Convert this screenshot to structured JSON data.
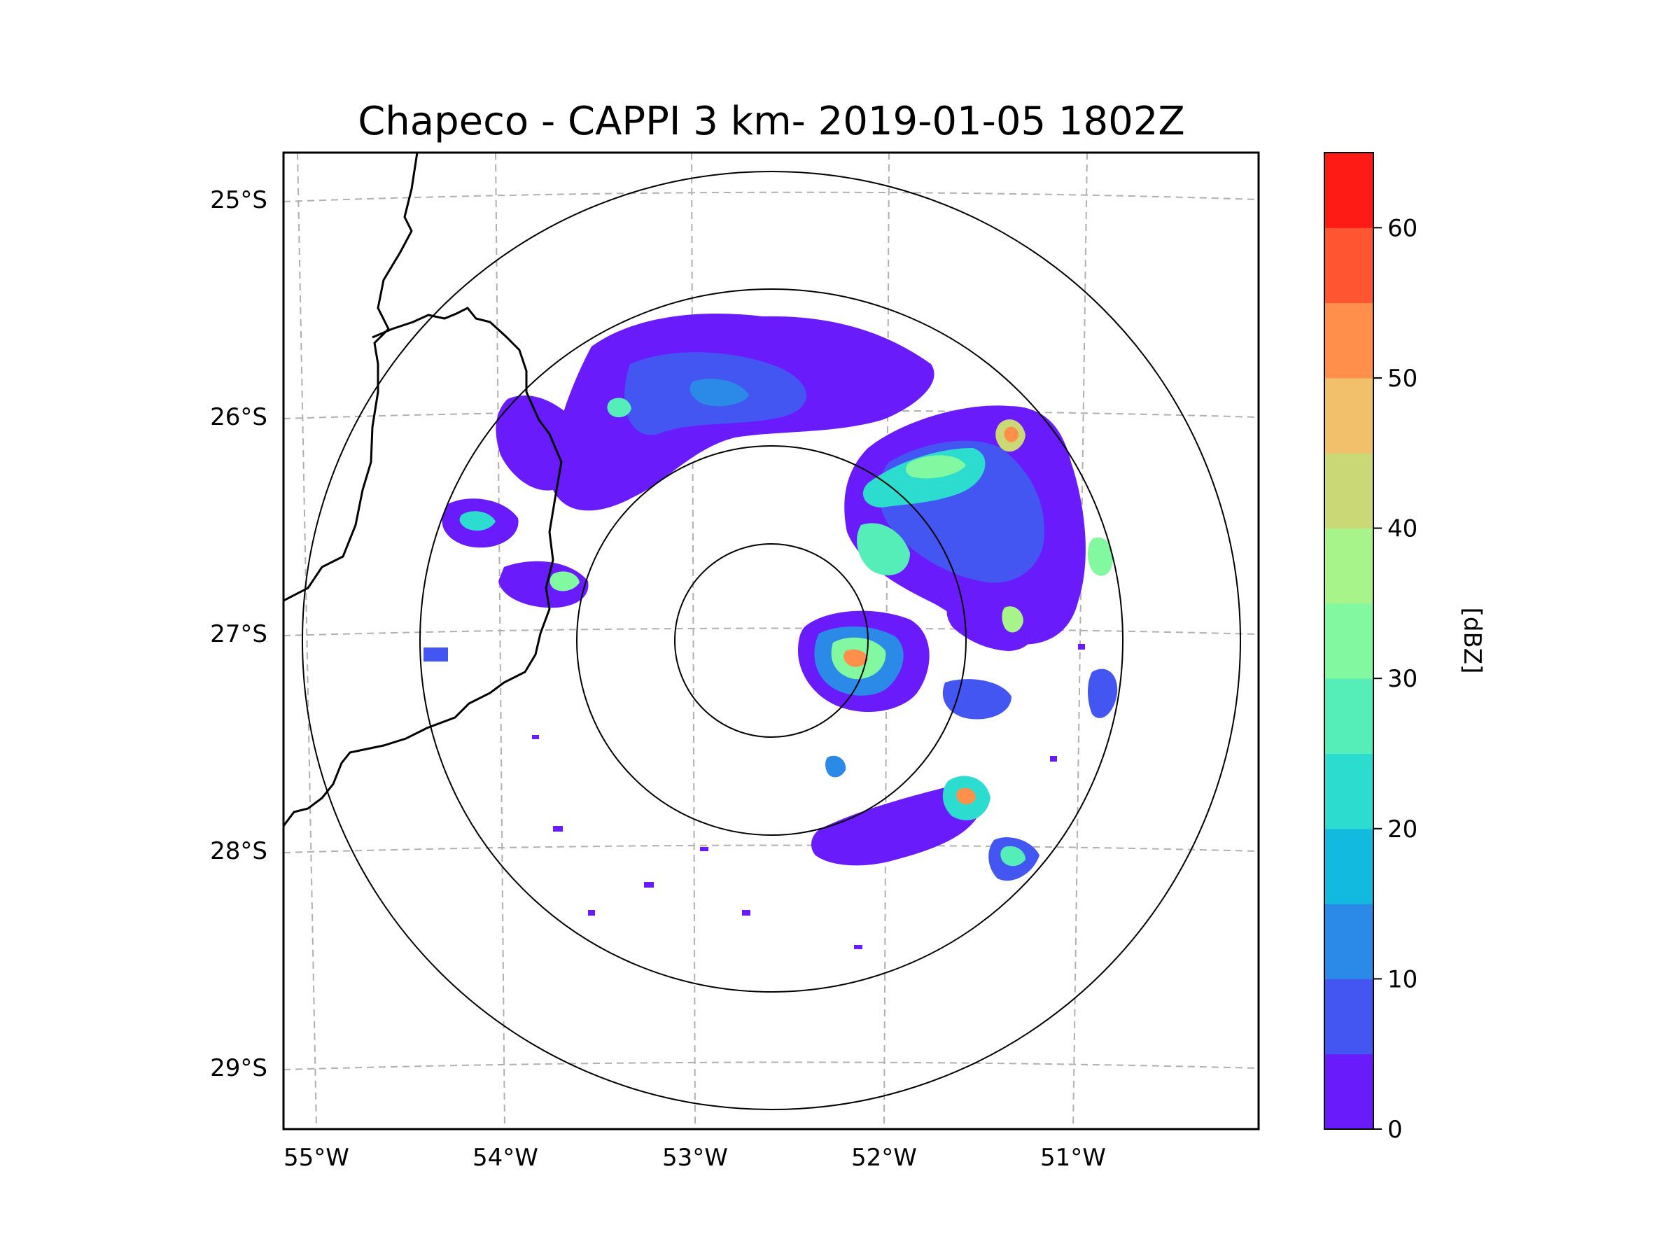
{
  "title": "Chapeco - CAPPI 3 km- 2019-01-05 1802Z",
  "map": {
    "lon_ticks": [
      "55°W",
      "54°W",
      "53°W",
      "52°W",
      "51°W"
    ],
    "lat_ticks": [
      "25°S",
      "26°S",
      "27°S",
      "28°S",
      "29°S"
    ],
    "grid_color": "#b0b0b0",
    "border_color": "#000000",
    "range_ring_color": "#000000"
  },
  "colorbar": {
    "label": "[dBZ]",
    "ticks": [
      "0",
      "10",
      "20",
      "30",
      "40",
      "50",
      "60"
    ],
    "min": 0,
    "max": 65,
    "step": 5,
    "colors": [
      "#6a1bfb",
      "#4456f2",
      "#2b8ae8",
      "#12bae0",
      "#2bdccf",
      "#56eeb8",
      "#82f9a0",
      "#a7f48a",
      "#cbd876",
      "#f2c06a",
      "#ff8f4a",
      "#ff5530",
      "#ff1b15"
    ]
  }
}
